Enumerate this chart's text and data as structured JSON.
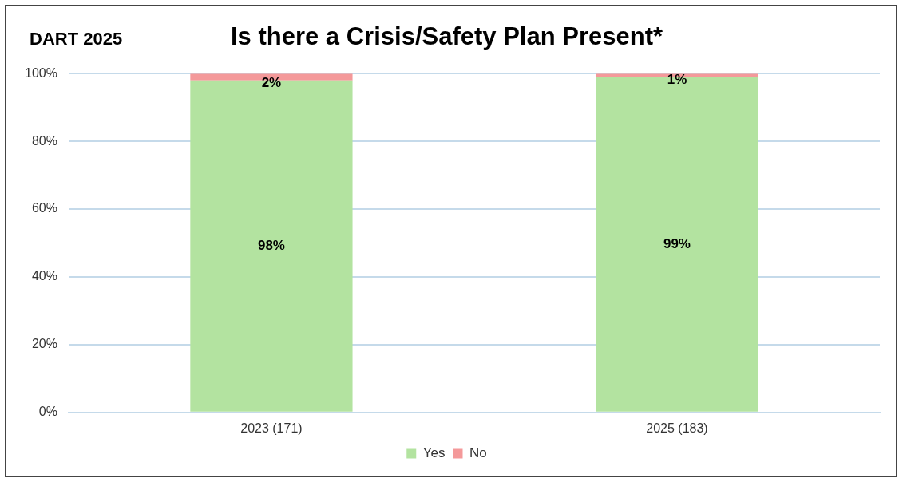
{
  "chart_data": {
    "type": "bar",
    "title": "Is there a Crisis/Safety Plan Present*",
    "annotations": [
      "DART 2025"
    ],
    "categories": [
      "2023 (171)",
      "2025 (183)"
    ],
    "stacked": true,
    "series": [
      {
        "name": "Yes",
        "color": "#b3e3a0",
        "values": [
          98,
          99
        ],
        "value_labels": [
          "98%",
          "99%"
        ]
      },
      {
        "name": "No",
        "color": "#f4999a",
        "values": [
          2,
          1
        ],
        "value_labels": [
          "2%",
          "1%"
        ]
      }
    ],
    "ylim": [
      0,
      100
    ],
    "yticks": [
      {
        "value": 0,
        "label": "0%"
      },
      {
        "value": 20,
        "label": "20%"
      },
      {
        "value": 40,
        "label": "40%"
      },
      {
        "value": 60,
        "label": "60%"
      },
      {
        "value": 80,
        "label": "80%"
      },
      {
        "value": 100,
        "label": "100%"
      }
    ],
    "grid": "y",
    "legend": "bottom"
  }
}
